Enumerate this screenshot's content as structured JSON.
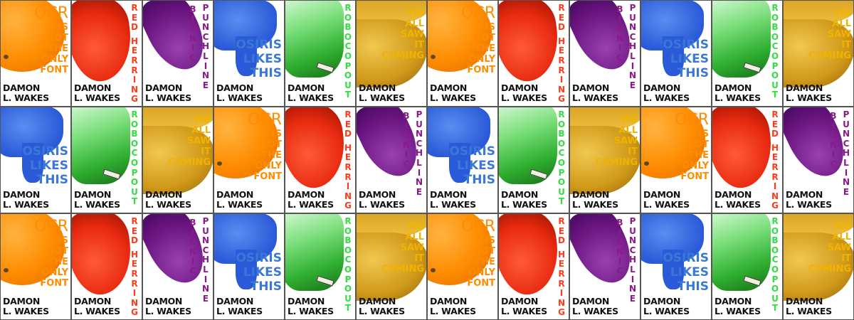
{
  "author": {
    "line1": "DAMON",
    "line2": "L. WAKES"
  },
  "covers": {
    "ocr": {
      "title_lines": [
        "OCR",
        "IS",
        "NOT",
        "THE",
        "ONLY",
        "FONT"
      ],
      "color": "#ff8c00",
      "style": "lines-right",
      "art": "orange"
    },
    "red_herring": {
      "title_columns": [
        "RED HERRING"
      ],
      "color": "#ff3b1a",
      "style": "vertical",
      "art": "goldfish"
    },
    "bionic_punchline": {
      "title_columns": [
        "BIONIC",
        "PUNCHLINE"
      ],
      "color": "#8a1a8a",
      "style": "vertical",
      "art": "boxing-glove"
    },
    "osiris": {
      "title_lines": [
        "OSIRIS",
        "LIKES",
        "THIS"
      ],
      "color": "#3a78d8",
      "style": "lines-right",
      "art": "eye-of-horus"
    },
    "robocopout": {
      "title_columns": [
        "ROBOCOPOUT"
      ],
      "color": "#33dd44",
      "style": "vertical",
      "art": "car"
    },
    "we_all_saw": {
      "title_lines": [
        "WE",
        "ALL",
        "SAW",
        "IT",
        "COMING"
      ],
      "color": "#f0b400",
      "style": "lines-right",
      "art": "bananas"
    }
  },
  "grid": [
    [
      "ocr",
      "red_herring",
      "bionic_punchline",
      "osiris",
      "robocopout",
      "we_all_saw",
      "ocr",
      "red_herring",
      "bionic_punchline",
      "osiris",
      "robocopout",
      "we_all_saw"
    ],
    [
      "osiris",
      "robocopout",
      "we_all_saw",
      "ocr",
      "red_herring",
      "bionic_punchline",
      "osiris",
      "robocopout",
      "we_all_saw",
      "ocr",
      "red_herring",
      "bionic_punchline"
    ],
    [
      "ocr",
      "red_herring",
      "bionic_punchline",
      "osiris",
      "robocopout",
      "we_all_saw",
      "ocr",
      "red_herring",
      "bionic_punchline",
      "osiris",
      "robocopout",
      "we_all_saw"
    ]
  ]
}
